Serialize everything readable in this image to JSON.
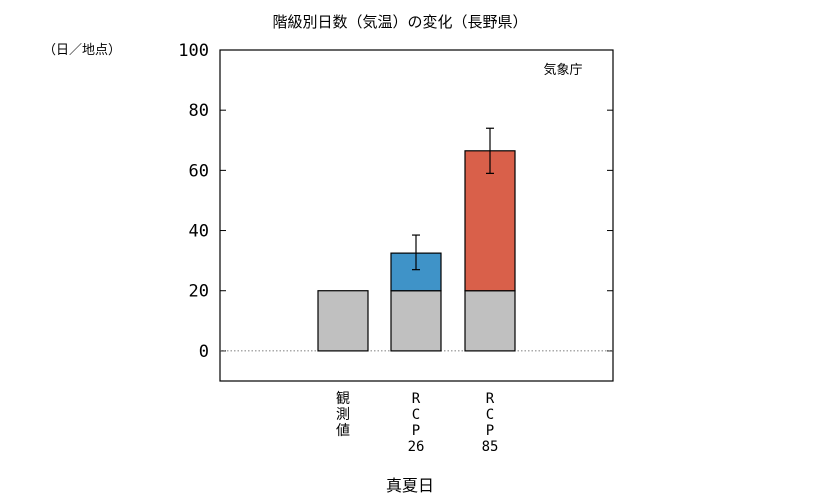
{
  "chart_data": {
    "type": "bar",
    "title": "階級別日数（気温）の変化（長野県）",
    "ylabel": "（日／地点）",
    "xlabel": "真夏日",
    "source_note": "気象庁",
    "ylim": [
      -10,
      100
    ],
    "yticks": [
      0,
      20,
      40,
      60,
      80,
      100
    ],
    "grid": false,
    "zero_line": "dotted",
    "categories": [
      {
        "lines": [
          "観",
          "測",
          "値"
        ]
      },
      {
        "lines": [
          "R",
          "C",
          "P",
          "26"
        ]
      },
      {
        "lines": [
          "R",
          "C",
          "P",
          "85"
        ]
      }
    ],
    "series": [
      {
        "values": [
          20,
          20,
          20
        ],
        "color": "#c0c0c0"
      },
      {
        "values": [
          0,
          12.5,
          46.5
        ],
        "colors": [
          "#c0c0c0",
          "#3f93c8",
          "#d9604a"
        ]
      }
    ],
    "totals": [
      20,
      32.5,
      66.5
    ],
    "error_bars": [
      null,
      {
        "low": 27,
        "high": 38.5
      },
      {
        "low": 59,
        "high": 74
      }
    ]
  }
}
